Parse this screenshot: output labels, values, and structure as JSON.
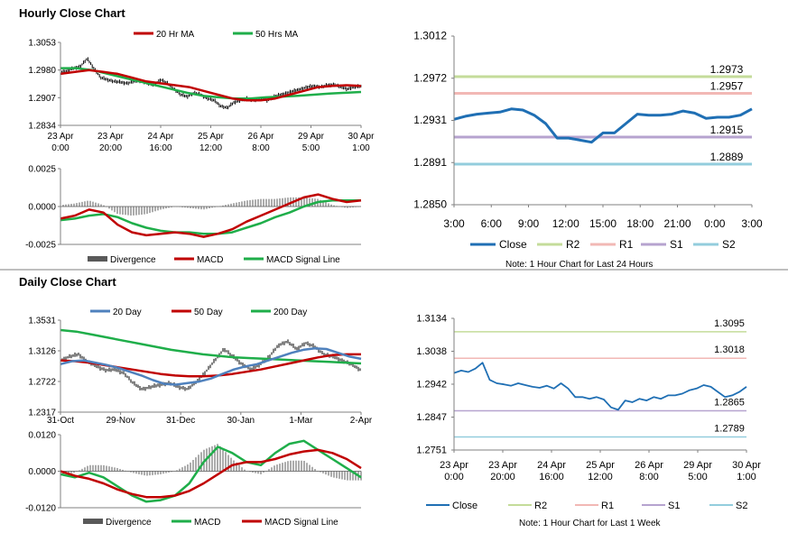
{
  "page": {
    "hourly_title": "Hourly Close Chart",
    "daily_title": "Daily Close Chart",
    "hourly_note": "Note: 1 Hour Chart for Last 24 Hours",
    "daily_note": "Note: 1 Hour Chart for Last 1 Week"
  },
  "colors": {
    "close": "#1f6fb4",
    "ma20hr": "#c00000",
    "ma50hr": "#1fae4a",
    "r2": "#c4dc9a",
    "r1": "#f2b8b5",
    "s1": "#b6a3cf",
    "s2": "#93cddd",
    "divergence": "#595959",
    "macd_red": "#c00000",
    "macd_green": "#1fae4a",
    "day20": "#4f81bd",
    "day50": "#c00000",
    "day200": "#1fae4a"
  },
  "chart_data": [
    {
      "id": "hourly_price",
      "type": "line",
      "title": "Hourly Close Chart",
      "legend": [
        "20 Hr MA",
        "50 Hrs MA"
      ],
      "yticks": [
        "1.3053",
        "1.2980",
        "1.2907",
        "1.2834"
      ],
      "ylim": [
        1.2834,
        1.3053
      ],
      "xticks": [
        [
          "23 Apr",
          "0:00"
        ],
        [
          "23 Apr",
          "20:00"
        ],
        [
          "24 Apr",
          "16:00"
        ],
        [
          "25 Apr",
          "12:00"
        ],
        [
          "26 Apr",
          "8:00"
        ],
        [
          "29 Apr",
          "5:00"
        ],
        [
          "30 Apr",
          "1:00"
        ]
      ],
      "series": [
        {
          "name": "Close",
          "values": [
            1.2975,
            1.2978,
            1.2985,
            1.299,
            1.301,
            1.2985,
            1.296,
            1.2955,
            1.295,
            1.2948,
            1.2945,
            1.295,
            1.2952,
            1.2945,
            1.294,
            1.2955,
            1.2945,
            1.293,
            1.2915,
            1.291,
            1.292,
            1.2915,
            1.2905,
            1.29,
            1.2885,
            1.288,
            1.2895,
            1.29,
            1.2905,
            1.29,
            1.2905,
            1.29,
            1.291,
            1.2915,
            1.292,
            1.2925,
            1.293,
            1.2935,
            1.2938,
            1.2935,
            1.294,
            1.2942,
            1.2935,
            1.293,
            1.2935,
            1.2937
          ]
        },
        {
          "name": "20 Hr MA",
          "values": [
            1.297,
            1.2975,
            1.298,
            1.2975,
            1.297,
            1.296,
            1.295,
            1.2945,
            1.294,
            1.2935,
            1.2925,
            1.2915,
            1.2905,
            1.29,
            1.29,
            1.2905,
            1.2915,
            1.2925,
            1.2935,
            1.2938,
            1.294,
            1.2938
          ]
        },
        {
          "name": "50 Hrs MA",
          "values": [
            1.2985,
            1.2985,
            1.298,
            1.297,
            1.296,
            1.295,
            1.294,
            1.293,
            1.292,
            1.2912,
            1.2908,
            1.2905,
            1.2905,
            1.2908,
            1.291,
            1.2912,
            1.2915,
            1.2918,
            1.292,
            1.2922
          ]
        }
      ]
    },
    {
      "id": "hourly_macd",
      "type": "bar",
      "legend": [
        "Divergence",
        "MACD",
        "MACD Signal Line"
      ],
      "yticks": [
        "0.0025",
        "0.0000",
        "-0.0025"
      ],
      "ylim": [
        -0.0025,
        0.0025
      ],
      "series": [
        {
          "name": "MACD",
          "values": [
            -0.0008,
            -0.0006,
            -0.0002,
            -0.0004,
            -0.0012,
            -0.0017,
            -0.0019,
            -0.0018,
            -0.0017,
            -0.0018,
            -0.002,
            -0.0018,
            -0.0015,
            -0.001,
            -0.0006,
            -0.0002,
            0.0002,
            0.0006,
            0.0008,
            0.0005,
            0.0003,
            0.0004
          ]
        },
        {
          "name": "MACD Signal Line",
          "values": [
            -0.0009,
            -0.0008,
            -0.0006,
            -0.0005,
            -0.0007,
            -0.0011,
            -0.0014,
            -0.0016,
            -0.0017,
            -0.0017,
            -0.0018,
            -0.0018,
            -0.0017,
            -0.0014,
            -0.0011,
            -0.0007,
            -0.0004,
            0.0,
            0.0003,
            0.0004,
            0.0004,
            0.0004
          ]
        },
        {
          "name": "Divergence",
          "values": [
            0.0001,
            0.0002,
            0.0004,
            0.0001,
            -0.0005,
            -0.0006,
            -0.0005,
            -0.0002,
            0.0,
            -0.0001,
            -0.0002,
            0.0,
            0.0002,
            0.0004,
            0.0005,
            0.0005,
            0.0006,
            0.0006,
            0.0005,
            0.0001,
            -0.0001,
            0.0
          ]
        }
      ]
    },
    {
      "id": "hourly_sr",
      "type": "line",
      "yticks": [
        "1.3012",
        "1.2972",
        "1.2931",
        "1.2891",
        "1.2850"
      ],
      "ylim": [
        1.285,
        1.3012
      ],
      "xticks": [
        "3:00",
        "6:00",
        "9:00",
        "12:00",
        "15:00",
        "18:00",
        "21:00",
        "0:00",
        "3:00"
      ],
      "legend": [
        "Close",
        "R2",
        "R1",
        "S1",
        "S2"
      ],
      "levels": [
        {
          "name": "R2",
          "value": 1.2973,
          "label": "1.2973"
        },
        {
          "name": "R1",
          "value": 1.2957,
          "label": "1.2957"
        },
        {
          "name": "S1",
          "value": 1.2915,
          "label": "1.2915"
        },
        {
          "name": "S2",
          "value": 1.2889,
          "label": "1.2889"
        }
      ],
      "series": [
        {
          "name": "Close",
          "values": [
            1.2932,
            1.2935,
            1.2937,
            1.2938,
            1.2939,
            1.2942,
            1.2941,
            1.2936,
            1.2928,
            1.2914,
            1.2914,
            1.2912,
            1.291,
            1.2919,
            1.2919,
            1.2928,
            1.2937,
            1.2936,
            1.2936,
            1.2937,
            1.294,
            1.2938,
            1.2933,
            1.2934,
            1.2934,
            1.2936,
            1.2942
          ]
        }
      ]
    },
    {
      "id": "daily_price",
      "type": "line",
      "title": "Daily Close Chart",
      "legend": [
        "20 Day",
        "50 Day",
        "200 Day"
      ],
      "yticks": [
        "1.3531",
        "1.3126",
        "1.2722",
        "1.2317"
      ],
      "ylim": [
        1.2317,
        1.3531
      ],
      "xticks": [
        "31-Oct",
        "29-Nov",
        "31-Dec",
        "30-Jan",
        "1-Mar",
        "2-Apr"
      ],
      "series": [
        {
          "name": "Close",
          "values": [
            1.3,
            1.305,
            1.308,
            1.298,
            1.292,
            1.287,
            1.288,
            1.283,
            1.27,
            1.262,
            1.265,
            1.268,
            1.27,
            1.265,
            1.262,
            1.272,
            1.285,
            1.3,
            1.315,
            1.305,
            1.295,
            1.288,
            1.295,
            1.305,
            1.32,
            1.325,
            1.315,
            1.323,
            1.318,
            1.308,
            1.305,
            1.3,
            1.295,
            1.288
          ]
        },
        {
          "name": "20 Day",
          "values": [
            1.295,
            1.299,
            1.3,
            1.297,
            1.294,
            1.29,
            1.285,
            1.28,
            1.274,
            1.269,
            1.268,
            1.27,
            1.272,
            1.276,
            1.282,
            1.288,
            1.292,
            1.295,
            1.3,
            1.305,
            1.31,
            1.314,
            1.316,
            1.315,
            1.31,
            1.305,
            1.302
          ]
        },
        {
          "name": "50 Day",
          "values": [
            1.3,
            1.299,
            1.297,
            1.294,
            1.291,
            1.288,
            1.285,
            1.282,
            1.28,
            1.279,
            1.279,
            1.28,
            1.282,
            1.285,
            1.288,
            1.292,
            1.296,
            1.3,
            1.304,
            1.307,
            1.308,
            1.308
          ]
        },
        {
          "name": "200 Day",
          "values": [
            1.34,
            1.338,
            1.334,
            1.33,
            1.326,
            1.322,
            1.318,
            1.314,
            1.311,
            1.308,
            1.306,
            1.304,
            1.303,
            1.302,
            1.301,
            1.3,
            1.299,
            1.298,
            1.297,
            1.296
          ]
        }
      ]
    },
    {
      "id": "daily_macd",
      "type": "bar",
      "legend": [
        "Divergence",
        "MACD",
        "MACD Signal Line"
      ],
      "yticks": [
        "0.0120",
        "0.0000",
        "-0.0120"
      ],
      "ylim": [
        -0.012,
        0.012
      ],
      "series": [
        {
          "name": "MACD",
          "values": [
            -0.001,
            -0.002,
            -0.0005,
            -0.002,
            -0.005,
            -0.008,
            -0.01,
            -0.0095,
            -0.008,
            -0.004,
            0.003,
            0.008,
            0.006,
            0.003,
            0.002,
            0.006,
            0.009,
            0.01,
            0.007,
            0.004,
            0.001,
            -0.002
          ]
        },
        {
          "name": "MACD Signal Line",
          "values": [
            0.0,
            -0.0015,
            -0.0025,
            -0.004,
            -0.006,
            -0.0075,
            -0.0085,
            -0.0085,
            -0.008,
            -0.0065,
            -0.004,
            -0.001,
            0.002,
            0.003,
            0.003,
            0.004,
            0.0055,
            0.0065,
            0.007,
            0.006,
            0.004,
            0.001
          ]
        },
        {
          "name": "Divergence",
          "values": [
            -0.001,
            -0.0005,
            0.002,
            0.002,
            0.001,
            -0.0005,
            -0.0015,
            -0.001,
            0.0,
            0.0025,
            0.007,
            0.009,
            0.004,
            0.0,
            -0.001,
            0.002,
            0.0035,
            0.0035,
            0.0,
            -0.002,
            -0.003,
            -0.003
          ]
        }
      ]
    },
    {
      "id": "daily_sr",
      "type": "line",
      "yticks": [
        "1.3134",
        "1.3038",
        "1.2942",
        "1.2847",
        "1.2751"
      ],
      "ylim": [
        1.2751,
        1.3134
      ],
      "xticks": [
        [
          "23 Apr",
          "0:00"
        ],
        [
          "23 Apr",
          "20:00"
        ],
        [
          "24 Apr",
          "16:00"
        ],
        [
          "25 Apr",
          "12:00"
        ],
        [
          "26 Apr",
          "8:00"
        ],
        [
          "29 Apr",
          "5:00"
        ],
        [
          "30 Apr",
          "1:00"
        ]
      ],
      "legend": [
        "Close",
        "R2",
        "R1",
        "S1",
        "S2"
      ],
      "levels": [
        {
          "name": "R2",
          "value": 1.3095,
          "label": "1.3095"
        },
        {
          "name": "R1",
          "value": 1.3018,
          "label": "1.3018"
        },
        {
          "name": "S1",
          "value": 1.2865,
          "label": "1.2865"
        },
        {
          "name": "S2",
          "value": 1.2789,
          "label": "1.2789"
        }
      ],
      "series": [
        {
          "name": "Close",
          "values": [
            1.2975,
            1.2982,
            1.2978,
            1.2988,
            1.3005,
            1.2955,
            1.2945,
            1.2942,
            1.2938,
            1.2945,
            1.294,
            1.2935,
            1.2932,
            1.2938,
            1.293,
            1.2945,
            1.293,
            1.2905,
            1.2905,
            1.29,
            1.2905,
            1.2898,
            1.2875,
            1.2868,
            1.2895,
            1.289,
            1.29,
            1.2895,
            1.2905,
            1.29,
            1.291,
            1.291,
            1.2915,
            1.2925,
            1.293,
            1.294,
            1.2935,
            1.292,
            1.2905,
            1.291,
            1.292,
            1.2935
          ]
        }
      ]
    }
  ]
}
